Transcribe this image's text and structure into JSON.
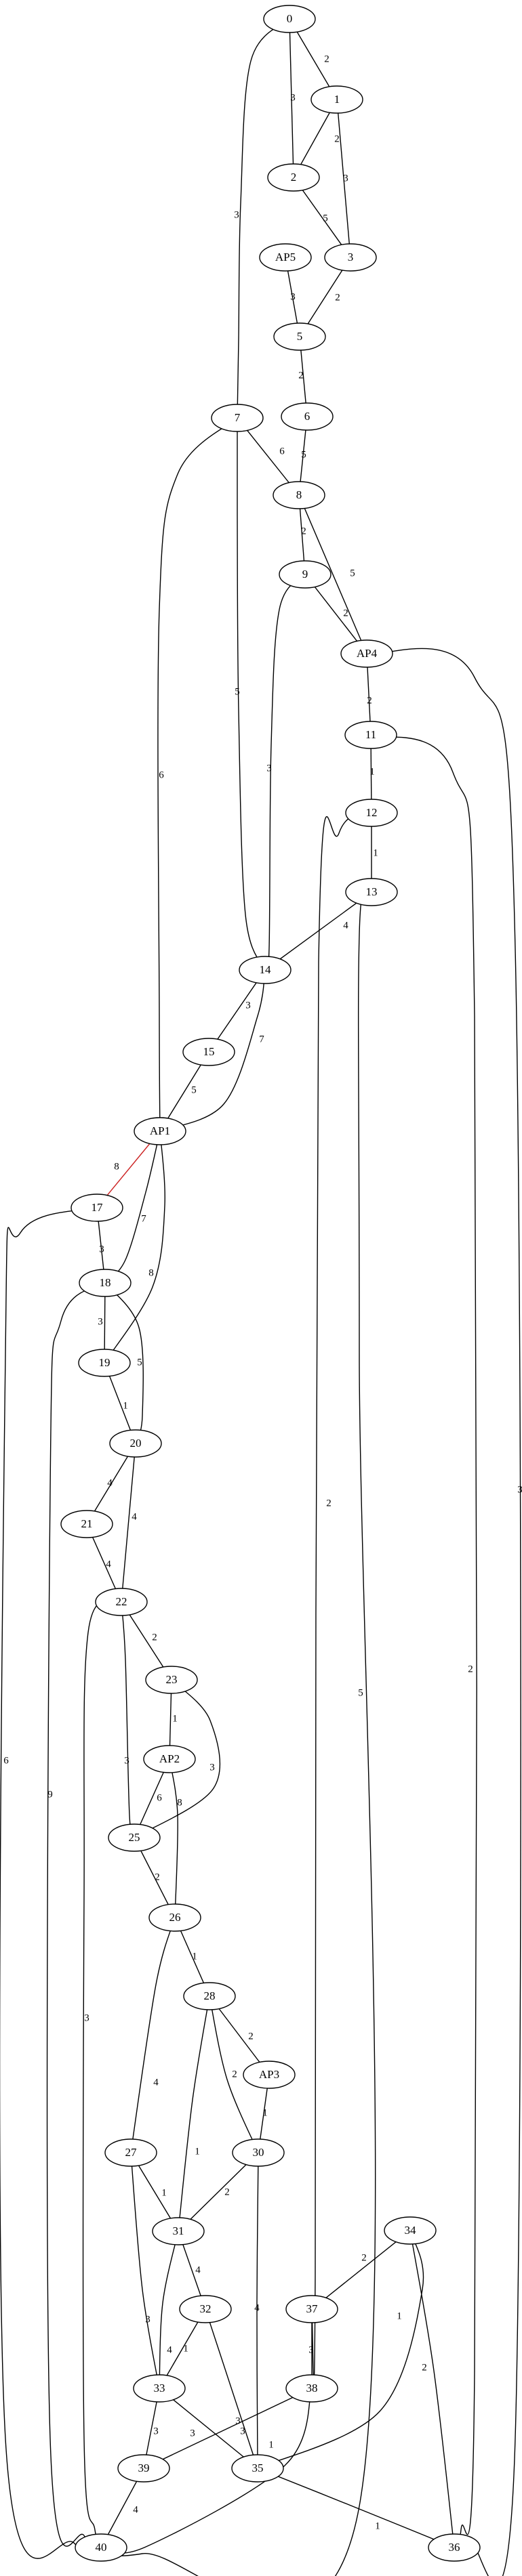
{
  "graph": {
    "nodes": [
      "0",
      "1",
      "2",
      "3",
      "AP5",
      "5",
      "6",
      "7",
      "8",
      "9",
      "AP4",
      "11",
      "12",
      "13",
      "14",
      "15",
      "AP1",
      "17",
      "18",
      "19",
      "20",
      "21",
      "22",
      "23",
      "AP2",
      "25",
      "26",
      "28",
      "AP3",
      "30",
      "27",
      "31",
      "32",
      "34",
      "37",
      "33",
      "38",
      "39",
      "35",
      "40",
      "36"
    ],
    "edges": [
      {
        "from": "0",
        "to": "1",
        "label": "2"
      },
      {
        "from": "0",
        "to": "2",
        "label": "3"
      },
      {
        "from": "0",
        "to": "7",
        "label": "3"
      },
      {
        "from": "1",
        "to": "2",
        "label": "2"
      },
      {
        "from": "1",
        "to": "3",
        "label": "3"
      },
      {
        "from": "2",
        "to": "3",
        "label": "5"
      },
      {
        "from": "3",
        "to": "5",
        "label": "2"
      },
      {
        "from": "AP5",
        "to": "5",
        "label": "3"
      },
      {
        "from": "5",
        "to": "6",
        "label": "2"
      },
      {
        "from": "6",
        "to": "8",
        "label": "5"
      },
      {
        "from": "7",
        "to": "8",
        "label": "6"
      },
      {
        "from": "7",
        "to": "14",
        "label": "5"
      },
      {
        "from": "7",
        "to": "AP1",
        "label": "6"
      },
      {
        "from": "8",
        "to": "9",
        "label": "2"
      },
      {
        "from": "8",
        "to": "AP4",
        "label": "5"
      },
      {
        "from": "9",
        "to": "AP4",
        "label": "2"
      },
      {
        "from": "9",
        "to": "14",
        "label": "3"
      },
      {
        "from": "AP4",
        "to": "11",
        "label": "2"
      },
      {
        "from": "AP4",
        "to": "36",
        "label": "3"
      },
      {
        "from": "11",
        "to": "12",
        "label": "1"
      },
      {
        "from": "11",
        "to": "36",
        "label": "2"
      },
      {
        "from": "12",
        "to": "13",
        "label": "1"
      },
      {
        "from": "12",
        "to": "37",
        "label": "2"
      },
      {
        "from": "13",
        "to": "14",
        "label": "4"
      },
      {
        "from": "13",
        "to": "40",
        "label": "5"
      },
      {
        "from": "14",
        "to": "15",
        "label": "3"
      },
      {
        "from": "14",
        "to": "AP1",
        "label": "7"
      },
      {
        "from": "15",
        "to": "AP1",
        "label": "5"
      },
      {
        "from": "AP1",
        "to": "17",
        "label": "8",
        "highlight": "#cc2222"
      },
      {
        "from": "AP1",
        "to": "18",
        "label": "7"
      },
      {
        "from": "AP1",
        "to": "19",
        "label": "8"
      },
      {
        "from": "17",
        "to": "18",
        "label": "3"
      },
      {
        "from": "17",
        "to": "40",
        "label": "6"
      },
      {
        "from": "18",
        "to": "19",
        "label": "3"
      },
      {
        "from": "18",
        "to": "20",
        "label": "5"
      },
      {
        "from": "18",
        "to": "40",
        "label": "9"
      },
      {
        "from": "19",
        "to": "20",
        "label": "1"
      },
      {
        "from": "20",
        "to": "21",
        "label": "4"
      },
      {
        "from": "20",
        "to": "22",
        "label": "4"
      },
      {
        "from": "21",
        "to": "22",
        "label": "4"
      },
      {
        "from": "22",
        "to": "23",
        "label": "2"
      },
      {
        "from": "22",
        "to": "25",
        "label": "3"
      },
      {
        "from": "22",
        "to": "40",
        "label": "3"
      },
      {
        "from": "23",
        "to": "AP2",
        "label": "1"
      },
      {
        "from": "23",
        "to": "25",
        "label": "3"
      },
      {
        "from": "AP2",
        "to": "25",
        "label": "6"
      },
      {
        "from": "AP2",
        "to": "26",
        "label": "8"
      },
      {
        "from": "25",
        "to": "26",
        "label": "2"
      },
      {
        "from": "26",
        "to": "28",
        "label": "1"
      },
      {
        "from": "26",
        "to": "27",
        "label": "4"
      },
      {
        "from": "28",
        "to": "AP3",
        "label": "2"
      },
      {
        "from": "28",
        "to": "30",
        "label": "2"
      },
      {
        "from": "28",
        "to": "31",
        "label": "1"
      },
      {
        "from": "AP3",
        "to": "30",
        "label": "1"
      },
      {
        "from": "30",
        "to": "31",
        "label": "2"
      },
      {
        "from": "30",
        "to": "35",
        "label": "4"
      },
      {
        "from": "27",
        "to": "31",
        "label": "1"
      },
      {
        "from": "27",
        "to": "33",
        "label": "3"
      },
      {
        "from": "31",
        "to": "32",
        "label": "4"
      },
      {
        "from": "31",
        "to": "33",
        "label": "4"
      },
      {
        "from": "32",
        "to": "33",
        "label": "1"
      },
      {
        "from": "32",
        "to": "35",
        "label": "3"
      },
      {
        "from": "34",
        "to": "37",
        "label": "2"
      },
      {
        "from": "34",
        "to": "35",
        "label": "1"
      },
      {
        "from": "34",
        "to": "36",
        "label": "2"
      },
      {
        "from": "37",
        "to": "38",
        "label": "3"
      },
      {
        "from": "38",
        "to": "39",
        "label": "3"
      },
      {
        "from": "38",
        "to": "40",
        "label": "1"
      },
      {
        "from": "33",
        "to": "39",
        "label": "3"
      },
      {
        "from": "33",
        "to": "35",
        "label": "3"
      },
      {
        "from": "39",
        "to": "40",
        "label": "4"
      },
      {
        "from": "35",
        "to": "36",
        "label": "1"
      }
    ]
  }
}
